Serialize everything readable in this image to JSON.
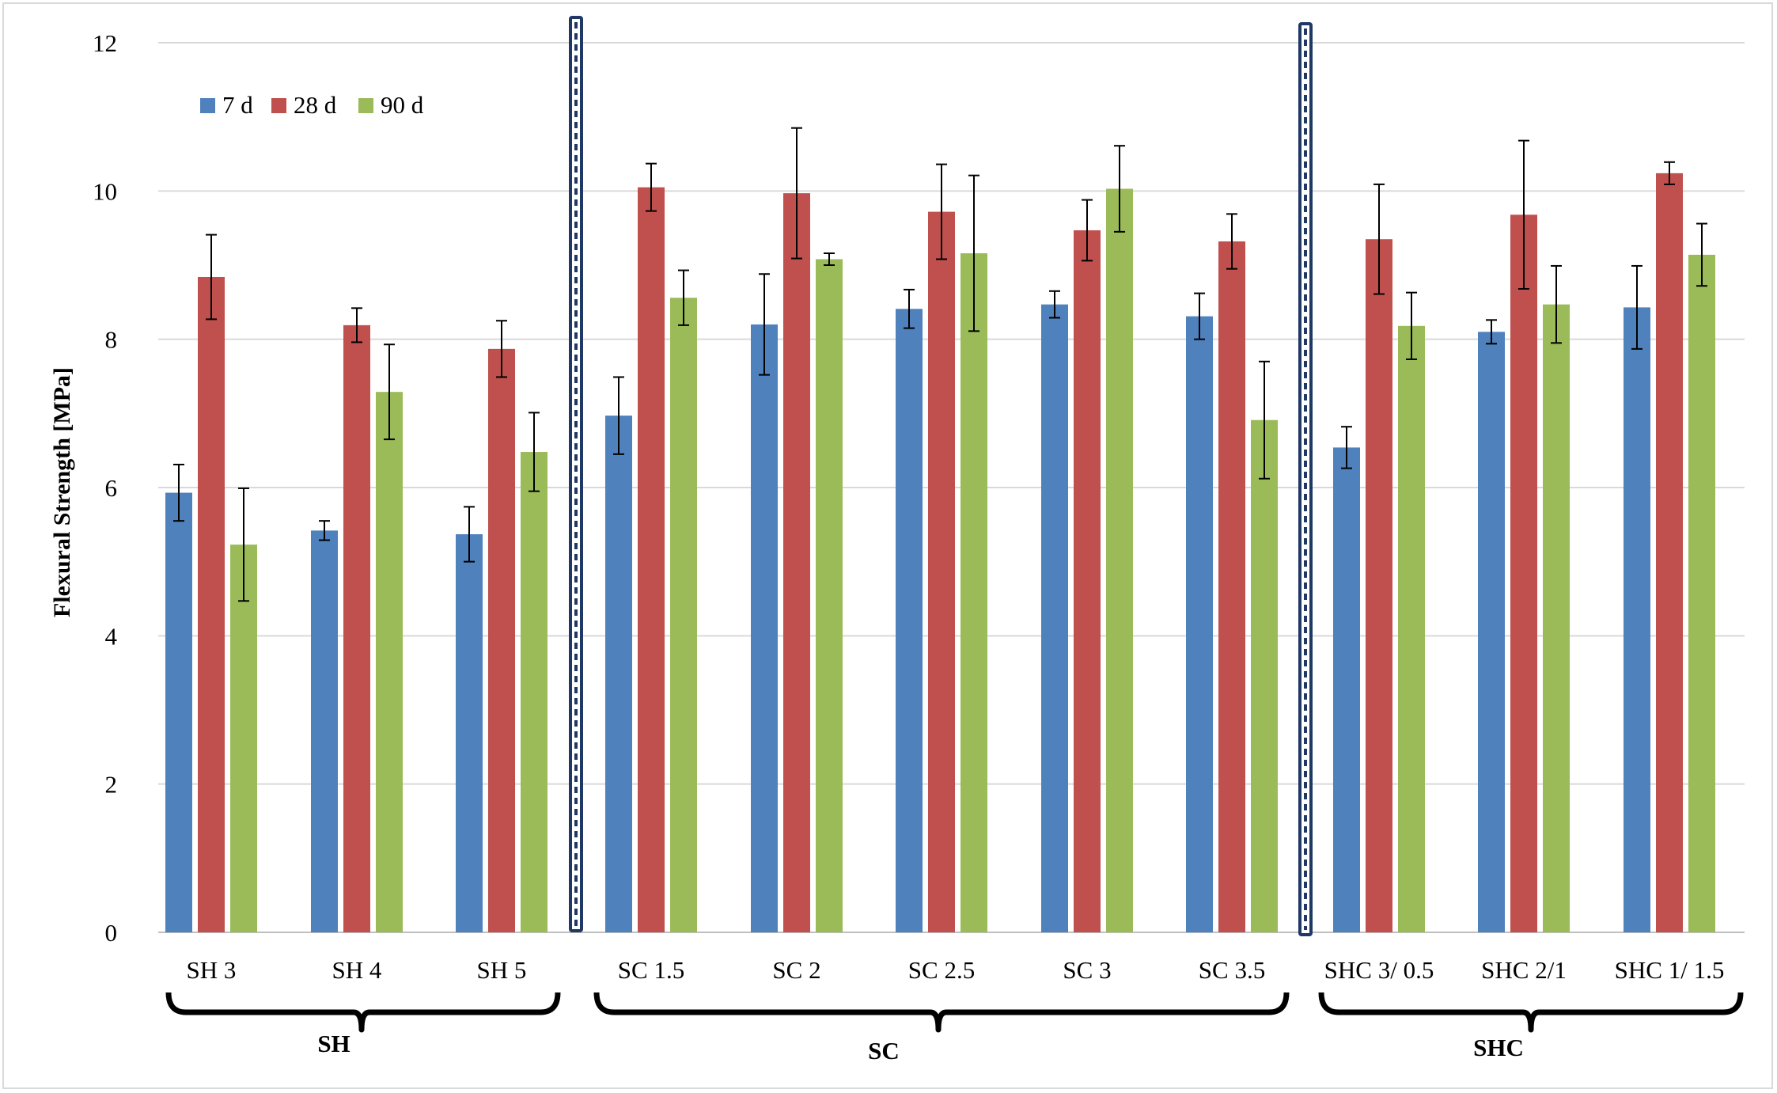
{
  "chart_data": {
    "type": "bar",
    "title": "",
    "xlabel": "",
    "ylabel": "Flexural Strength [MPa]",
    "ylim": [
      0,
      12
    ],
    "yticks": [
      0,
      2,
      4,
      6,
      8,
      10,
      12
    ],
    "grid": true,
    "legend_position": "top-left",
    "categories": [
      "SH 3",
      "SH 4",
      "SH 5",
      "SC 1.5",
      "SC 2",
      "SC 2.5",
      "SC 3",
      "SC 3.5",
      "SHC 3/ 0.5",
      "SHC 2/1",
      "SHC 1/ 1.5"
    ],
    "series": [
      {
        "name": "7 d",
        "color": "#4f81bd",
        "values": [
          5.93,
          5.42,
          5.37,
          6.97,
          8.2,
          8.41,
          8.47,
          8.31,
          6.54,
          8.1,
          8.43
        ],
        "errors": [
          0.38,
          0.13,
          0.37,
          0.52,
          0.68,
          0.26,
          0.18,
          0.31,
          0.28,
          0.16,
          0.56
        ]
      },
      {
        "name": "28 d",
        "color": "#c0504d",
        "values": [
          8.84,
          8.19,
          7.87,
          10.05,
          9.97,
          9.72,
          9.47,
          9.32,
          9.35,
          9.68,
          10.24
        ],
        "errors": [
          0.57,
          0.23,
          0.38,
          0.32,
          0.88,
          0.64,
          0.41,
          0.37,
          0.74,
          1.0,
          0.15
        ]
      },
      {
        "name": "90 d",
        "color": "#9bbb59",
        "values": [
          5.23,
          7.29,
          6.48,
          8.56,
          9.08,
          9.16,
          10.03,
          6.91,
          8.18,
          8.47,
          9.14
        ],
        "errors": [
          0.76,
          0.64,
          0.53,
          0.37,
          0.08,
          1.05,
          0.58,
          0.79,
          0.45,
          0.52,
          0.42
        ]
      }
    ],
    "groups": [
      {
        "label": "SH",
        "categories": [
          "SH 3",
          "SH 4",
          "SH 5"
        ]
      },
      {
        "label": "SC",
        "categories": [
          "SC 1.5",
          "SC 2",
          "SC 2.5",
          "SC 3",
          "SC 3.5"
        ]
      },
      {
        "label": "SHC",
        "categories": [
          "SHC 3/ 0.5",
          "SHC 2/1",
          "SHC 1/ 1.5"
        ]
      }
    ]
  }
}
